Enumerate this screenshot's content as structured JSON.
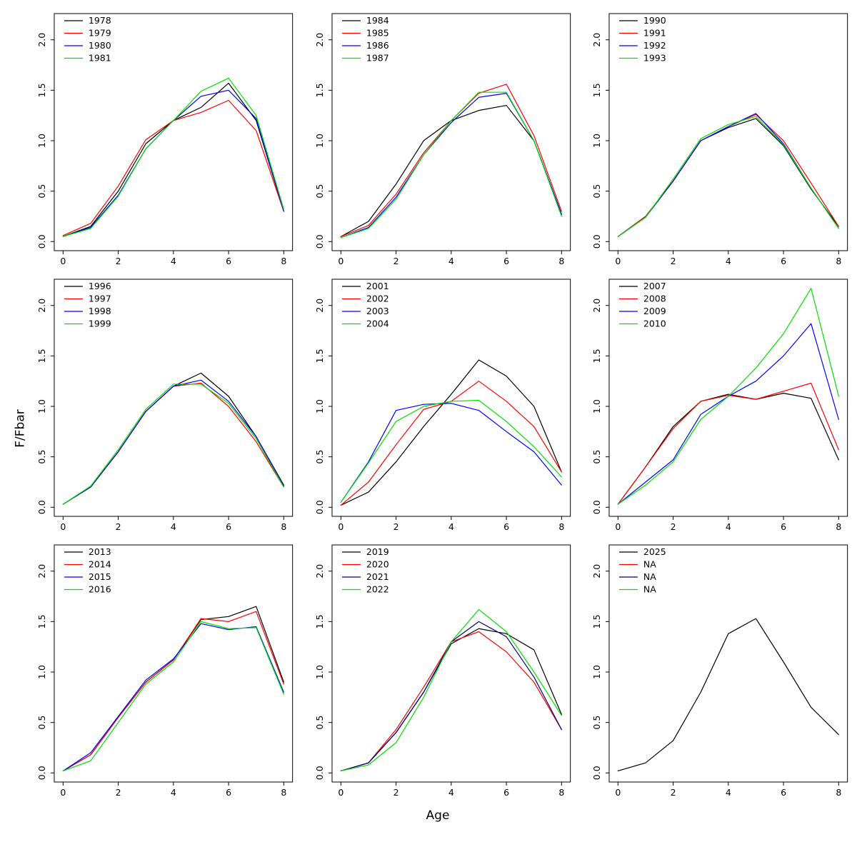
{
  "figure": {
    "xlabel": "Age",
    "ylabel": "F/Fbar"
  },
  "chart_data": [
    {
      "type": "line",
      "x": [
        0,
        1,
        2,
        3,
        4,
        5,
        6,
        7,
        8
      ],
      "xticks": [
        0,
        2,
        4,
        6,
        8
      ],
      "yticks": [
        0.0,
        0.5,
        1.0,
        1.5,
        2.0
      ],
      "xlim": [
        -0.32,
        8.32
      ],
      "ylim": [
        -0.09,
        2.26
      ],
      "legend_position": "topleft",
      "series": [
        {
          "name": "1978",
          "color": "#000000",
          "values": [
            0.05,
            0.15,
            0.5,
            0.97,
            1.2,
            1.33,
            1.57,
            1.2,
            0.3
          ]
        },
        {
          "name": "1979",
          "color": "#FF0000",
          "values": [
            0.06,
            0.18,
            0.55,
            1.01,
            1.2,
            1.28,
            1.4,
            1.1,
            0.3
          ]
        },
        {
          "name": "1980",
          "color": "#0000FF",
          "values": [
            0.05,
            0.14,
            0.46,
            0.92,
            1.2,
            1.44,
            1.5,
            1.22,
            0.3
          ]
        },
        {
          "name": "1981",
          "color": "#00E000",
          "values": [
            0.05,
            0.13,
            0.45,
            0.92,
            1.2,
            1.49,
            1.62,
            1.25,
            0.32
          ]
        }
      ]
    },
    {
      "type": "line",
      "x": [
        0,
        1,
        2,
        3,
        4,
        5,
        6,
        7,
        8
      ],
      "xticks": [
        0,
        2,
        4,
        6,
        8
      ],
      "yticks": [
        0.0,
        0.5,
        1.0,
        1.5,
        2.0
      ],
      "xlim": [
        -0.32,
        8.32
      ],
      "ylim": [
        -0.09,
        2.26
      ],
      "legend_position": "topleft",
      "series": [
        {
          "name": "1984",
          "color": "#000000",
          "values": [
            0.05,
            0.2,
            0.57,
            1.0,
            1.2,
            1.3,
            1.35,
            1.0,
            0.27
          ]
        },
        {
          "name": "1985",
          "color": "#FF0000",
          "values": [
            0.05,
            0.16,
            0.47,
            0.88,
            1.2,
            1.47,
            1.56,
            1.05,
            0.3
          ]
        },
        {
          "name": "1986",
          "color": "#0000FF",
          "values": [
            0.04,
            0.14,
            0.44,
            0.86,
            1.18,
            1.43,
            1.47,
            1.0,
            0.27
          ]
        },
        {
          "name": "1987",
          "color": "#00E000",
          "values": [
            0.04,
            0.13,
            0.42,
            0.86,
            1.2,
            1.48,
            1.48,
            1.0,
            0.25
          ]
        }
      ]
    },
    {
      "type": "line",
      "x": [
        0,
        1,
        2,
        3,
        4,
        5,
        6,
        7,
        8
      ],
      "xticks": [
        0,
        2,
        4,
        6,
        8
      ],
      "yticks": [
        0.0,
        0.5,
        1.0,
        1.5,
        2.0
      ],
      "xlim": [
        -0.32,
        8.32
      ],
      "ylim": [
        -0.09,
        2.26
      ],
      "legend_position": "topleft",
      "series": [
        {
          "name": "1990",
          "color": "#000000",
          "values": [
            0.05,
            0.25,
            0.6,
            1.0,
            1.13,
            1.22,
            0.95,
            0.52,
            0.15
          ]
        },
        {
          "name": "1991",
          "color": "#FF0000",
          "values": [
            0.05,
            0.25,
            0.6,
            1.0,
            1.14,
            1.26,
            1.0,
            0.58,
            0.15
          ]
        },
        {
          "name": "1992",
          "color": "#0000FF",
          "values": [
            0.05,
            0.24,
            0.6,
            1.0,
            1.14,
            1.27,
            0.97,
            0.53,
            0.13
          ]
        },
        {
          "name": "1993",
          "color": "#00E000",
          "values": [
            0.05,
            0.24,
            0.62,
            1.02,
            1.16,
            1.24,
            0.96,
            0.53,
            0.13
          ]
        }
      ]
    },
    {
      "type": "line",
      "x": [
        0,
        1,
        2,
        3,
        4,
        5,
        6,
        7,
        8
      ],
      "xticks": [
        0,
        2,
        4,
        6,
        8
      ],
      "yticks": [
        0.0,
        0.5,
        1.0,
        1.5,
        2.0
      ],
      "xlim": [
        -0.32,
        8.32
      ],
      "ylim": [
        -0.09,
        2.26
      ],
      "legend_position": "topleft",
      "series": [
        {
          "name": "1996",
          "color": "#000000",
          "values": [
            0.03,
            0.2,
            0.55,
            0.95,
            1.2,
            1.33,
            1.1,
            0.7,
            0.22
          ]
        },
        {
          "name": "1997",
          "color": "#FF0000",
          "values": [
            0.03,
            0.2,
            0.55,
            0.95,
            1.2,
            1.23,
            1.0,
            0.65,
            0.2
          ]
        },
        {
          "name": "1998",
          "color": "#0000FF",
          "values": [
            0.03,
            0.2,
            0.55,
            0.95,
            1.2,
            1.26,
            1.05,
            0.7,
            0.21
          ]
        },
        {
          "name": "1999",
          "color": "#00E000",
          "values": [
            0.03,
            0.21,
            0.57,
            0.97,
            1.22,
            1.22,
            1.03,
            0.68,
            0.2
          ]
        }
      ]
    },
    {
      "type": "line",
      "x": [
        0,
        1,
        2,
        3,
        4,
        5,
        6,
        7,
        8
      ],
      "xticks": [
        0,
        2,
        4,
        6,
        8
      ],
      "yticks": [
        0.0,
        0.5,
        1.0,
        1.5,
        2.0
      ],
      "xlim": [
        -0.32,
        8.32
      ],
      "ylim": [
        -0.09,
        2.26
      ],
      "legend_position": "topleft",
      "series": [
        {
          "name": "2001",
          "color": "#000000",
          "values": [
            0.02,
            0.15,
            0.45,
            0.8,
            1.12,
            1.46,
            1.3,
            1.0,
            0.35
          ]
        },
        {
          "name": "2002",
          "color": "#FF0000",
          "values": [
            0.02,
            0.25,
            0.62,
            0.97,
            1.05,
            1.25,
            1.05,
            0.8,
            0.35
          ]
        },
        {
          "name": "2003",
          "color": "#0000FF",
          "values": [
            0.05,
            0.45,
            0.96,
            1.02,
            1.03,
            0.96,
            0.75,
            0.55,
            0.22
          ]
        },
        {
          "name": "2004",
          "color": "#00E000",
          "values": [
            0.05,
            0.44,
            0.85,
            1.0,
            1.05,
            1.06,
            0.85,
            0.6,
            0.3
          ]
        }
      ]
    },
    {
      "type": "line",
      "x": [
        0,
        1,
        2,
        3,
        4,
        5,
        6,
        7,
        8
      ],
      "xticks": [
        0,
        2,
        4,
        6,
        8
      ],
      "yticks": [
        0.0,
        0.5,
        1.0,
        1.5,
        2.0
      ],
      "xlim": [
        -0.32,
        8.32
      ],
      "ylim": [
        -0.09,
        2.26
      ],
      "legend_position": "topleft",
      "series": [
        {
          "name": "2007",
          "color": "#000000",
          "values": [
            0.03,
            0.4,
            0.8,
            1.05,
            1.12,
            1.07,
            1.13,
            1.08,
            0.47
          ]
        },
        {
          "name": "2008",
          "color": "#FF0000",
          "values": [
            0.03,
            0.4,
            0.78,
            1.05,
            1.11,
            1.07,
            1.15,
            1.23,
            0.57
          ]
        },
        {
          "name": "2009",
          "color": "#0000FF",
          "values": [
            0.03,
            0.25,
            0.47,
            0.92,
            1.1,
            1.25,
            1.5,
            1.82,
            0.87
          ]
        },
        {
          "name": "2010",
          "color": "#00E000",
          "values": [
            0.03,
            0.22,
            0.45,
            0.87,
            1.1,
            1.38,
            1.72,
            2.17,
            1.1
          ]
        }
      ]
    },
    {
      "type": "line",
      "x": [
        0,
        1,
        2,
        3,
        4,
        5,
        6,
        7,
        8
      ],
      "xticks": [
        0,
        2,
        4,
        6,
        8
      ],
      "yticks": [
        0.0,
        0.5,
        1.0,
        1.5,
        2.0
      ],
      "xlim": [
        -0.32,
        8.32
      ],
      "ylim": [
        -0.09,
        2.26
      ],
      "legend_position": "topleft",
      "series": [
        {
          "name": "2013",
          "color": "#000000",
          "values": [
            0.02,
            0.18,
            0.55,
            0.9,
            1.12,
            1.52,
            1.55,
            1.65,
            0.9
          ]
        },
        {
          "name": "2014",
          "color": "#FF0000",
          "values": [
            0.02,
            0.18,
            0.55,
            0.9,
            1.12,
            1.53,
            1.5,
            1.6,
            0.88
          ]
        },
        {
          "name": "2015",
          "color": "#0000FF",
          "values": [
            0.02,
            0.2,
            0.56,
            0.92,
            1.13,
            1.48,
            1.42,
            1.45,
            0.8
          ]
        },
        {
          "name": "2016",
          "color": "#00E000",
          "values": [
            0.02,
            0.12,
            0.5,
            0.88,
            1.1,
            1.5,
            1.43,
            1.44,
            0.78
          ]
        }
      ]
    },
    {
      "type": "line",
      "x": [
        0,
        1,
        2,
        3,
        4,
        5,
        6,
        7,
        8
      ],
      "xticks": [
        0,
        2,
        4,
        6,
        8
      ],
      "yticks": [
        0.0,
        0.5,
        1.0,
        1.5,
        2.0
      ],
      "xlim": [
        -0.32,
        8.32
      ],
      "ylim": [
        -0.09,
        2.26
      ],
      "legend_position": "topleft",
      "series": [
        {
          "name": "2019",
          "color": "#000000",
          "values": [
            0.02,
            0.1,
            0.4,
            0.8,
            1.28,
            1.43,
            1.38,
            1.22,
            0.58
          ]
        },
        {
          "name": "2020",
          "color": "#FF0000",
          "values": [
            0.02,
            0.1,
            0.43,
            0.85,
            1.3,
            1.4,
            1.2,
            0.9,
            0.43
          ]
        },
        {
          "name": "2021",
          "color": "#000080",
          "values": [
            0.02,
            0.1,
            0.4,
            0.8,
            1.3,
            1.5,
            1.35,
            0.95,
            0.43
          ]
        },
        {
          "name": "2022",
          "color": "#00E000",
          "values": [
            0.02,
            0.08,
            0.3,
            0.75,
            1.3,
            1.62,
            1.4,
            1.0,
            0.57
          ]
        }
      ]
    },
    {
      "type": "line",
      "x": [
        0,
        1,
        2,
        3,
        4,
        5,
        6,
        7,
        8
      ],
      "xticks": [
        0,
        2,
        4,
        6,
        8
      ],
      "yticks": [
        0.0,
        0.5,
        1.0,
        1.5,
        2.0
      ],
      "xlim": [
        -0.32,
        8.32
      ],
      "ylim": [
        -0.09,
        2.26
      ],
      "legend_position": "topleft",
      "series": [
        {
          "name": "2025",
          "color": "#000000",
          "values": [
            0.02,
            0.1,
            0.32,
            0.8,
            1.38,
            1.53,
            1.1,
            0.65,
            0.38
          ]
        },
        {
          "name": "NA",
          "color": "#FF0000",
          "values": null
        },
        {
          "name": "NA",
          "color": "#000080",
          "values": null
        },
        {
          "name": "NA",
          "color": "#00E000",
          "values": null
        }
      ]
    }
  ]
}
